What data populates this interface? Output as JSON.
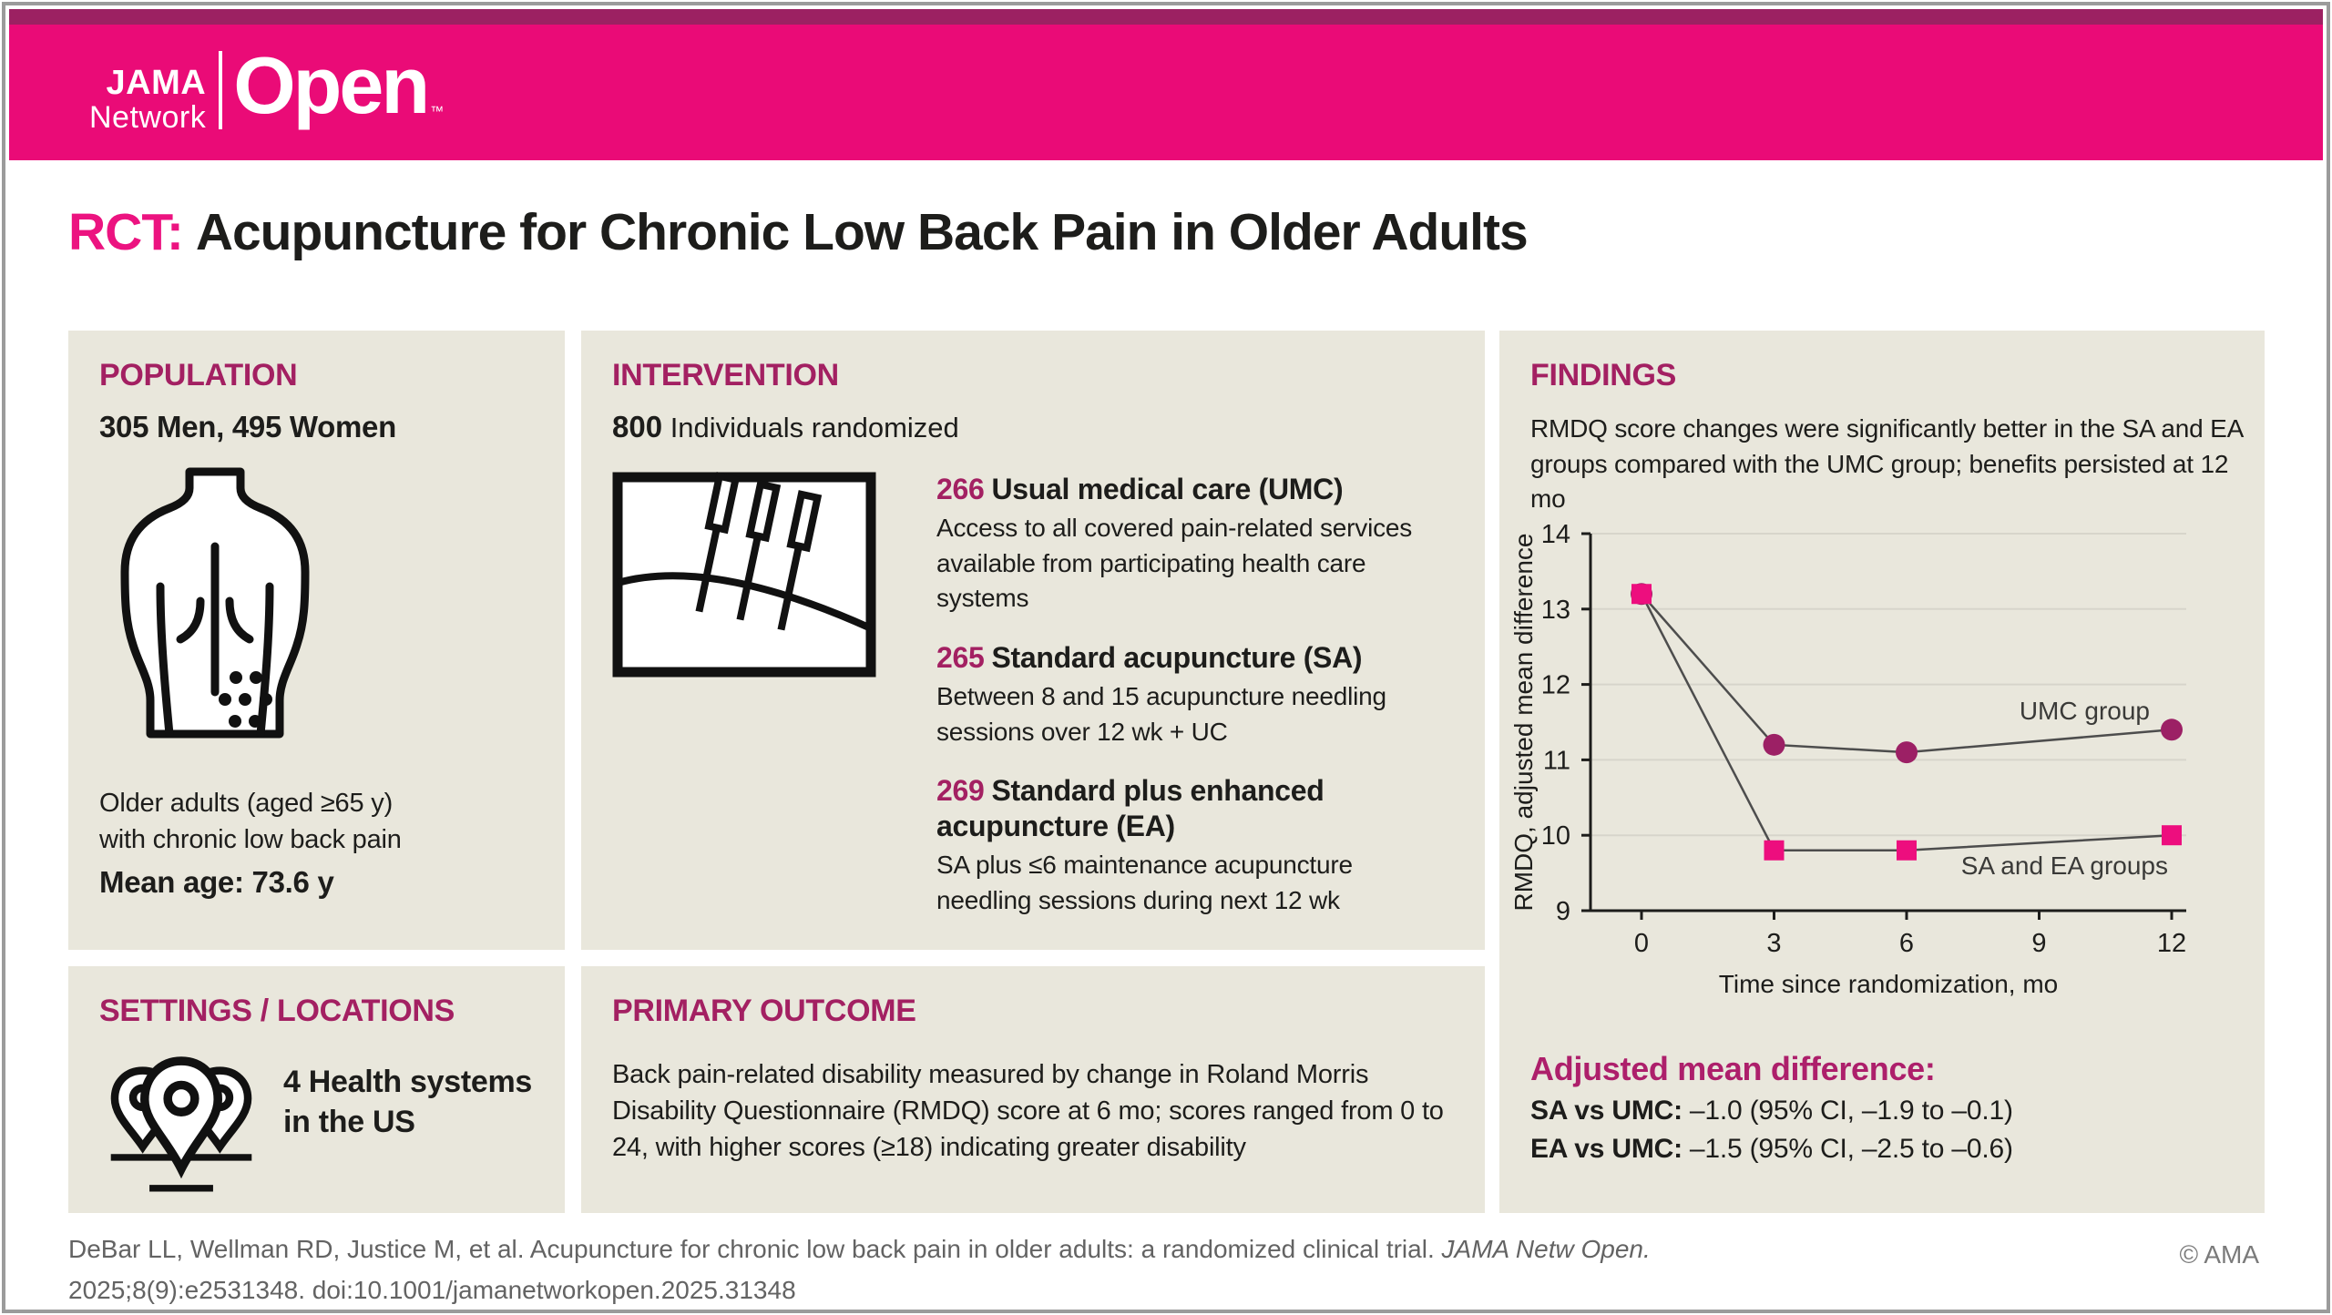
{
  "colors": {
    "banner_pink": "#EA0B77",
    "banner_dark": "#9C2162",
    "accent_magenta": "#A32062",
    "accent_bright": "#AD1F6B",
    "title_pink": "#EC1380",
    "sa_pink": "#ED0E7E",
    "umc_purple": "#9C2065",
    "panel_bg": "#E9E7DC",
    "text_dark": "#1D1D1B",
    "gridline": "#D7D5CB",
    "chart_line": "#4D4D4D"
  },
  "banner": {
    "brand_line1": "JAMA",
    "brand_line2": "Network",
    "brand_name": "Open",
    "trademark": "™"
  },
  "title": {
    "prefix": "RCT:",
    "text": "Acupuncture for Chronic Low Back Pain in Older Adults"
  },
  "population": {
    "heading": "POPULATION",
    "subtitle": "305 Men, 495 Women",
    "icon": "back-pain-icon",
    "description_line1": "Older adults (aged ≥65 y)",
    "description_line2": "with chronic low back pain",
    "mean_age": "Mean age: 73.6 y"
  },
  "intervention": {
    "heading": "INTERVENTION",
    "count": "800",
    "count_label": "Individuals randomized",
    "icon": "acupuncture-needles-icon",
    "groups": [
      {
        "count": "266",
        "name": "Usual medical care (UMC)",
        "description": "Access to all covered pain-related services available from participating health care systems"
      },
      {
        "count": "265",
        "name": "Standard acupuncture (SA)",
        "description": "Between 8 and 15 acupuncture needling sessions over 12 wk + UC"
      },
      {
        "count": "269",
        "name": "Standard plus enhanced acupuncture (EA)",
        "description": "SA plus ≤6 maintenance acupuncture needling sessions during next 12 wk"
      }
    ]
  },
  "settings": {
    "heading": "SETTINGS / LOCATIONS",
    "icon": "map-pins-icon",
    "text_line1": "4 Health systems",
    "text_line2": "in the US"
  },
  "outcome": {
    "heading": "PRIMARY OUTCOME",
    "description": "Back pain-related disability measured by change in Roland Morris Disability Questionnaire (RMDQ) score at 6 mo; scores ranged from 0 to 24, with higher scores (≥18) indicating greater disability"
  },
  "findings": {
    "heading": "FINDINGS",
    "summary": "RMDQ score changes were significantly better in the SA and EA groups compared with the UMC group; benefits persisted at 12 mo",
    "adjusted_heading": "Adjusted mean difference:",
    "comparisons": [
      {
        "label": "SA vs UMC:",
        "value": "–1.0 (95% CI, –1.9 to –0.1)"
      },
      {
        "label": "EA vs UMC:",
        "value": "–1.5 (95% CI, –2.5 to –0.6)"
      }
    ]
  },
  "chart_data": {
    "type": "line",
    "x": [
      0,
      3,
      6,
      12
    ],
    "series": [
      {
        "name": "UMC group",
        "marker": "circle",
        "color": "#9C2065",
        "values": [
          13.2,
          11.2,
          11.1,
          11.4
        ]
      },
      {
        "name": "SA and EA groups",
        "marker": "square",
        "color": "#ED0E7E",
        "values": [
          13.2,
          9.8,
          9.8,
          10.0
        ]
      }
    ],
    "xlabel": "Time since randomization, mo",
    "ylabel": "RMDQ, adjusted mean difference",
    "xticks": [
      0,
      3,
      6,
      9,
      12
    ],
    "yticks": [
      9,
      10,
      11,
      12,
      13,
      14
    ],
    "xlim": [
      0,
      12
    ],
    "ylim": [
      9,
      14
    ],
    "grid": true,
    "legend_position": "inline-labels",
    "line_color": "#4D4D4D"
  },
  "footer": {
    "citation_text": "DeBar LL, Wellman RD, Justice M, et al. Acupuncture for chronic low back pain in older adults: a randomized clinical trial. ",
    "citation_journal": "JAMA Netw Open.",
    "citation_line2": "2025;8(9):e2531348. doi:10.1001/jamanetworkopen.2025.31348",
    "copyright": "© AMA"
  }
}
